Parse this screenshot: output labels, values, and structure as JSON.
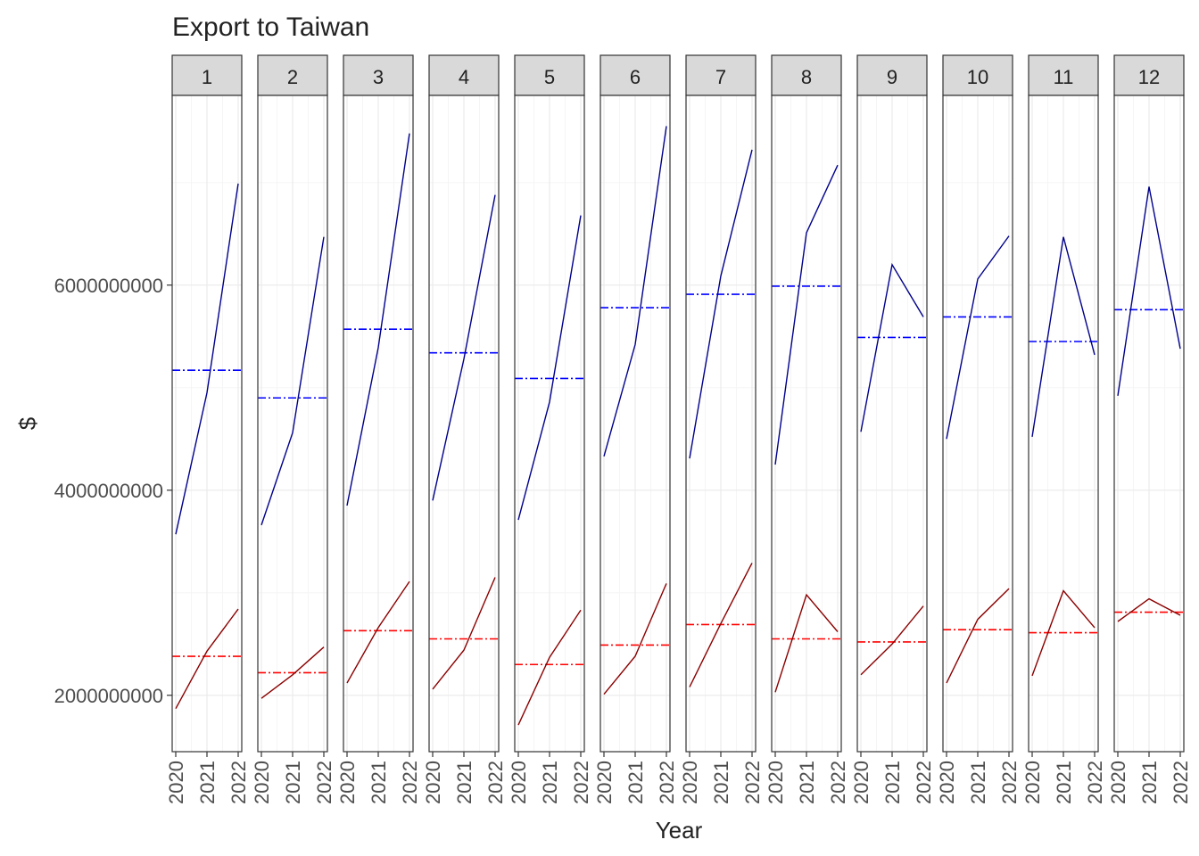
{
  "chart_data": {
    "type": "line",
    "title": "Export to Taiwan",
    "xlabel": "Year",
    "ylabel": "$",
    "x": [
      2020,
      2021,
      2022
    ],
    "x_tick_labels": [
      "2020",
      "2021",
      "2022"
    ],
    "ylim": [
      1450000000,
      7850000000
    ],
    "y_ticks": [
      2000000000,
      4000000000,
      6000000000
    ],
    "y_tick_labels": [
      "2000000000",
      "4000000000",
      "6000000000"
    ],
    "grid": true,
    "facets": [
      {
        "label": "1",
        "blue": [
          3570000000,
          4950000000,
          6990000000
        ],
        "blue_mean": 5170000000,
        "red": [
          1870000000,
          2430000000,
          2840000000
        ],
        "red_mean": 2380000000
      },
      {
        "label": "2",
        "blue": [
          3660000000,
          4560000000,
          6470000000
        ],
        "blue_mean": 4900000000,
        "red": [
          1970000000,
          2200000000,
          2470000000
        ],
        "red_mean": 2220000000
      },
      {
        "label": "3",
        "blue": [
          3850000000,
          5390000000,
          7480000000
        ],
        "blue_mean": 5570000000,
        "red": [
          2120000000,
          2660000000,
          3110000000
        ],
        "red_mean": 2630000000
      },
      {
        "label": "4",
        "blue": [
          3900000000,
          5280000000,
          6880000000
        ],
        "blue_mean": 5340000000,
        "red": [
          2060000000,
          2440000000,
          3150000000
        ],
        "red_mean": 2550000000
      },
      {
        "label": "5",
        "blue": [
          3710000000,
          4860000000,
          6680000000
        ],
        "blue_mean": 5090000000,
        "red": [
          1710000000,
          2370000000,
          2830000000
        ],
        "red_mean": 2300000000
      },
      {
        "label": "6",
        "blue": [
          4330000000,
          5420000000,
          7550000000
        ],
        "blue_mean": 5780000000,
        "red": [
          2010000000,
          2380000000,
          3090000000
        ],
        "red_mean": 2490000000
      },
      {
        "label": "7",
        "blue": [
          4310000000,
          6090000000,
          7320000000
        ],
        "blue_mean": 5910000000,
        "red": [
          2080000000,
          2700000000,
          3290000000
        ],
        "red_mean": 2690000000
      },
      {
        "label": "8",
        "blue": [
          4250000000,
          6510000000,
          7170000000
        ],
        "blue_mean": 5990000000,
        "red": [
          2030000000,
          2980000000,
          2620000000
        ],
        "red_mean": 2550000000
      },
      {
        "label": "9",
        "blue": [
          4570000000,
          6200000000,
          5690000000
        ],
        "blue_mean": 5490000000,
        "red": [
          2200000000,
          2500000000,
          2870000000
        ],
        "red_mean": 2520000000
      },
      {
        "label": "10",
        "blue": [
          4500000000,
          6060000000,
          6480000000
        ],
        "blue_mean": 5690000000,
        "red": [
          2120000000,
          2740000000,
          3040000000
        ],
        "red_mean": 2640000000
      },
      {
        "label": "11",
        "blue": [
          4520000000,
          6470000000,
          5320000000
        ],
        "blue_mean": 5450000000,
        "red": [
          2190000000,
          3020000000,
          2660000000
        ],
        "red_mean": 2610000000
      },
      {
        "label": "12",
        "blue": [
          4920000000,
          6960000000,
          5380000000
        ],
        "blue_mean": 5760000000,
        "red": [
          2720000000,
          2940000000,
          2780000000
        ],
        "red_mean": 2810000000
      }
    ],
    "colors": {
      "blue_line": "#00008B",
      "blue_mean": "#0000FF",
      "red_line": "#8B0000",
      "red_mean": "#FF0000",
      "strip_fill": "#D9D9D9",
      "panel_border": "#333333",
      "grid_major": "#EBEBEB",
      "grid_minor": "#F5F5F5"
    }
  }
}
